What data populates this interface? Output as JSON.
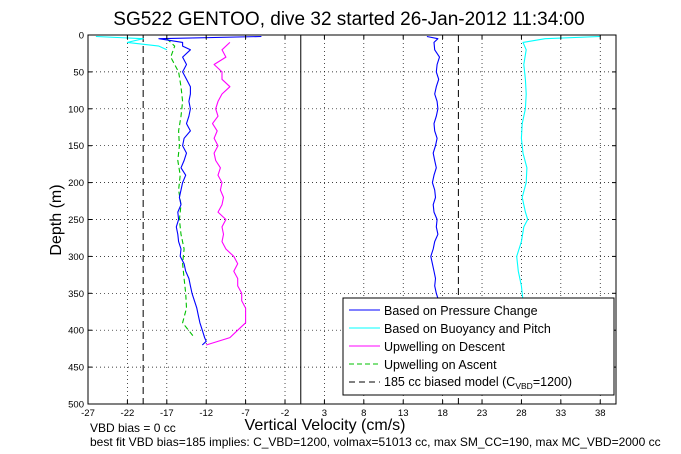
{
  "chart_data": {
    "type": "line",
    "title": "SG522 GENTOO, dive 32 started 26-Jan-2012 11:34:00",
    "xlabel": "Vertical Velocity (cm/s)",
    "ylabel": "Depth (m)",
    "xlim": [
      -27,
      40
    ],
    "ylim": [
      0,
      500
    ],
    "y_reversed": true,
    "grid": true,
    "legend_position": "bottom-right",
    "xticks": [
      -27,
      -22,
      -17,
      -12,
      -7,
      -2,
      3,
      8,
      13,
      18,
      23,
      28,
      33,
      38
    ],
    "yticks": [
      0,
      50,
      100,
      150,
      200,
      250,
      300,
      350,
      400,
      450,
      500
    ],
    "reference_lines": {
      "zero_x": 0,
      "model_x": [
        -20,
        20
      ]
    },
    "series": [
      {
        "name": "Based on Pressure Change",
        "color": "#0000ff",
        "style": "solid",
        "descent": {
          "depth": [
            2,
            5,
            10,
            15,
            20,
            30,
            40,
            50,
            60,
            70,
            80,
            90,
            100,
            110,
            120,
            130,
            140,
            150,
            160,
            170,
            180,
            190,
            200,
            210,
            220,
            230,
            240,
            250,
            260,
            270,
            280,
            290,
            300,
            310,
            320,
            330,
            340,
            350,
            360,
            370,
            380,
            390,
            400,
            410,
            415,
            420
          ],
          "velocity": [
            -5,
            -18,
            -15,
            -15,
            -14,
            -15,
            -14.5,
            -15,
            -14.5,
            -14,
            -14,
            -14.2,
            -14,
            -14.2,
            -14.5,
            -14,
            -14.8,
            -15,
            -14.5,
            -14.8,
            -15.2,
            -14.6,
            -15,
            -15.2,
            -15.4,
            -15.2,
            -15.6,
            -15.5,
            -15.8,
            -15.6,
            -15.5,
            -15.2,
            -15.3,
            -14.8,
            -14.6,
            -14.2,
            -14,
            -13.8,
            -13.5,
            -13.2,
            -13,
            -12.8,
            -12.5,
            -12.2,
            -12,
            -12.5
          ]
        },
        "ascent": {
          "depth": [
            415,
            400,
            390,
            380,
            370,
            360,
            350,
            340,
            330,
            320,
            310,
            300,
            290,
            280,
            270,
            260,
            250,
            240,
            230,
            220,
            210,
            200,
            190,
            180,
            170,
            160,
            150,
            140,
            130,
            120,
            110,
            100,
            90,
            80,
            70,
            60,
            50,
            40,
            30,
            20,
            10,
            5,
            2
          ],
          "velocity": [
            18,
            18.3,
            18.1,
            17.9,
            17.8,
            17.5,
            17.2,
            17,
            17.1,
            16.9,
            16.7,
            16.5,
            16.8,
            17,
            17.4,
            17.2,
            17.3,
            16.9,
            16.8,
            17.1,
            17,
            16.7,
            16.9,
            17.2,
            17,
            16.8,
            17.1,
            17.3,
            17,
            16.9,
            17.2,
            17.4,
            17.3,
            17,
            17.2,
            17.5,
            17.2,
            17.3,
            17.6,
            17,
            16.9,
            17.4,
            16
          ]
        }
      },
      {
        "name": "Based on Buoyancy and Pitch",
        "color": "#00ffff",
        "style": "solid",
        "descent": {
          "depth": [
            2,
            5,
            10,
            15,
            20
          ],
          "velocity": [
            -26,
            -20,
            -22,
            -18,
            -17
          ]
        },
        "ascent": {
          "depth": [
            410,
            400,
            380,
            360,
            340,
            320,
            300,
            280,
            260,
            250,
            240,
            220,
            200,
            180,
            160,
            140,
            120,
            100,
            80,
            60,
            40,
            20,
            10,
            5,
            2
          ],
          "velocity": [
            27.5,
            28,
            28.1,
            28.2,
            28,
            27.6,
            27.4,
            28,
            28.3,
            28.8,
            28.5,
            28.1,
            28.6,
            28.7,
            28.2,
            28,
            28.1,
            28.5,
            28.6,
            28.5,
            28.3,
            28.6,
            28.2,
            31,
            38
          ]
        }
      },
      {
        "name": "Upwelling on Descent",
        "color": "#ff00ff",
        "style": "solid",
        "depth": [
          10,
          20,
          30,
          40,
          50,
          60,
          70,
          80,
          90,
          100,
          110,
          120,
          130,
          140,
          150,
          160,
          170,
          180,
          190,
          200,
          210,
          220,
          230,
          240,
          250,
          260,
          270,
          280,
          290,
          300,
          310,
          320,
          330,
          340,
          350,
          360,
          370,
          380,
          390,
          400,
          410,
          420
        ],
        "velocity": [
          -9,
          -10,
          -9.5,
          -11,
          -10,
          -10,
          -9,
          -10,
          -10.5,
          -10.8,
          -10.5,
          -11.2,
          -10.6,
          -11,
          -10.5,
          -11,
          -10.8,
          -10.2,
          -10.5,
          -10,
          -10.2,
          -9.8,
          -10,
          -10.5,
          -9.5,
          -10,
          -9.8,
          -10,
          -9.5,
          -8.5,
          -8,
          -8.5,
          -8,
          -8,
          -7.5,
          -7.5,
          -7,
          -7,
          -7,
          -8,
          -9,
          -12
        ]
      },
      {
        "name": "Upwelling on Ascent",
        "color": "#00c000",
        "style": "dashed",
        "depth": [
          5,
          15,
          30,
          50,
          70,
          90,
          110,
          130,
          150,
          170,
          190,
          210,
          230,
          250,
          270,
          290,
          310,
          330,
          350,
          370,
          390,
          410
        ],
        "velocity": [
          -17,
          -16,
          -16.5,
          -15.5,
          -15.2,
          -15,
          -15.2,
          -15.5,
          -15.4,
          -15.6,
          -15.3,
          -15.5,
          -15.2,
          -15.4,
          -15.2,
          -14.8,
          -15,
          -14.8,
          -14.6,
          -14.5,
          -15,
          -13.5
        ]
      }
    ],
    "legend_model": {
      "prefix": "185 cc biased model (C",
      "subscript": "VBD",
      "suffix": "=1200)"
    }
  },
  "footer": {
    "line1": "VBD bias = 0 cc",
    "line2": "best fit VBD bias=185 implies: C_VBD=1200, volmax=51013 cc, max SM_CC=190, max MC_VBD=2000 cc"
  }
}
